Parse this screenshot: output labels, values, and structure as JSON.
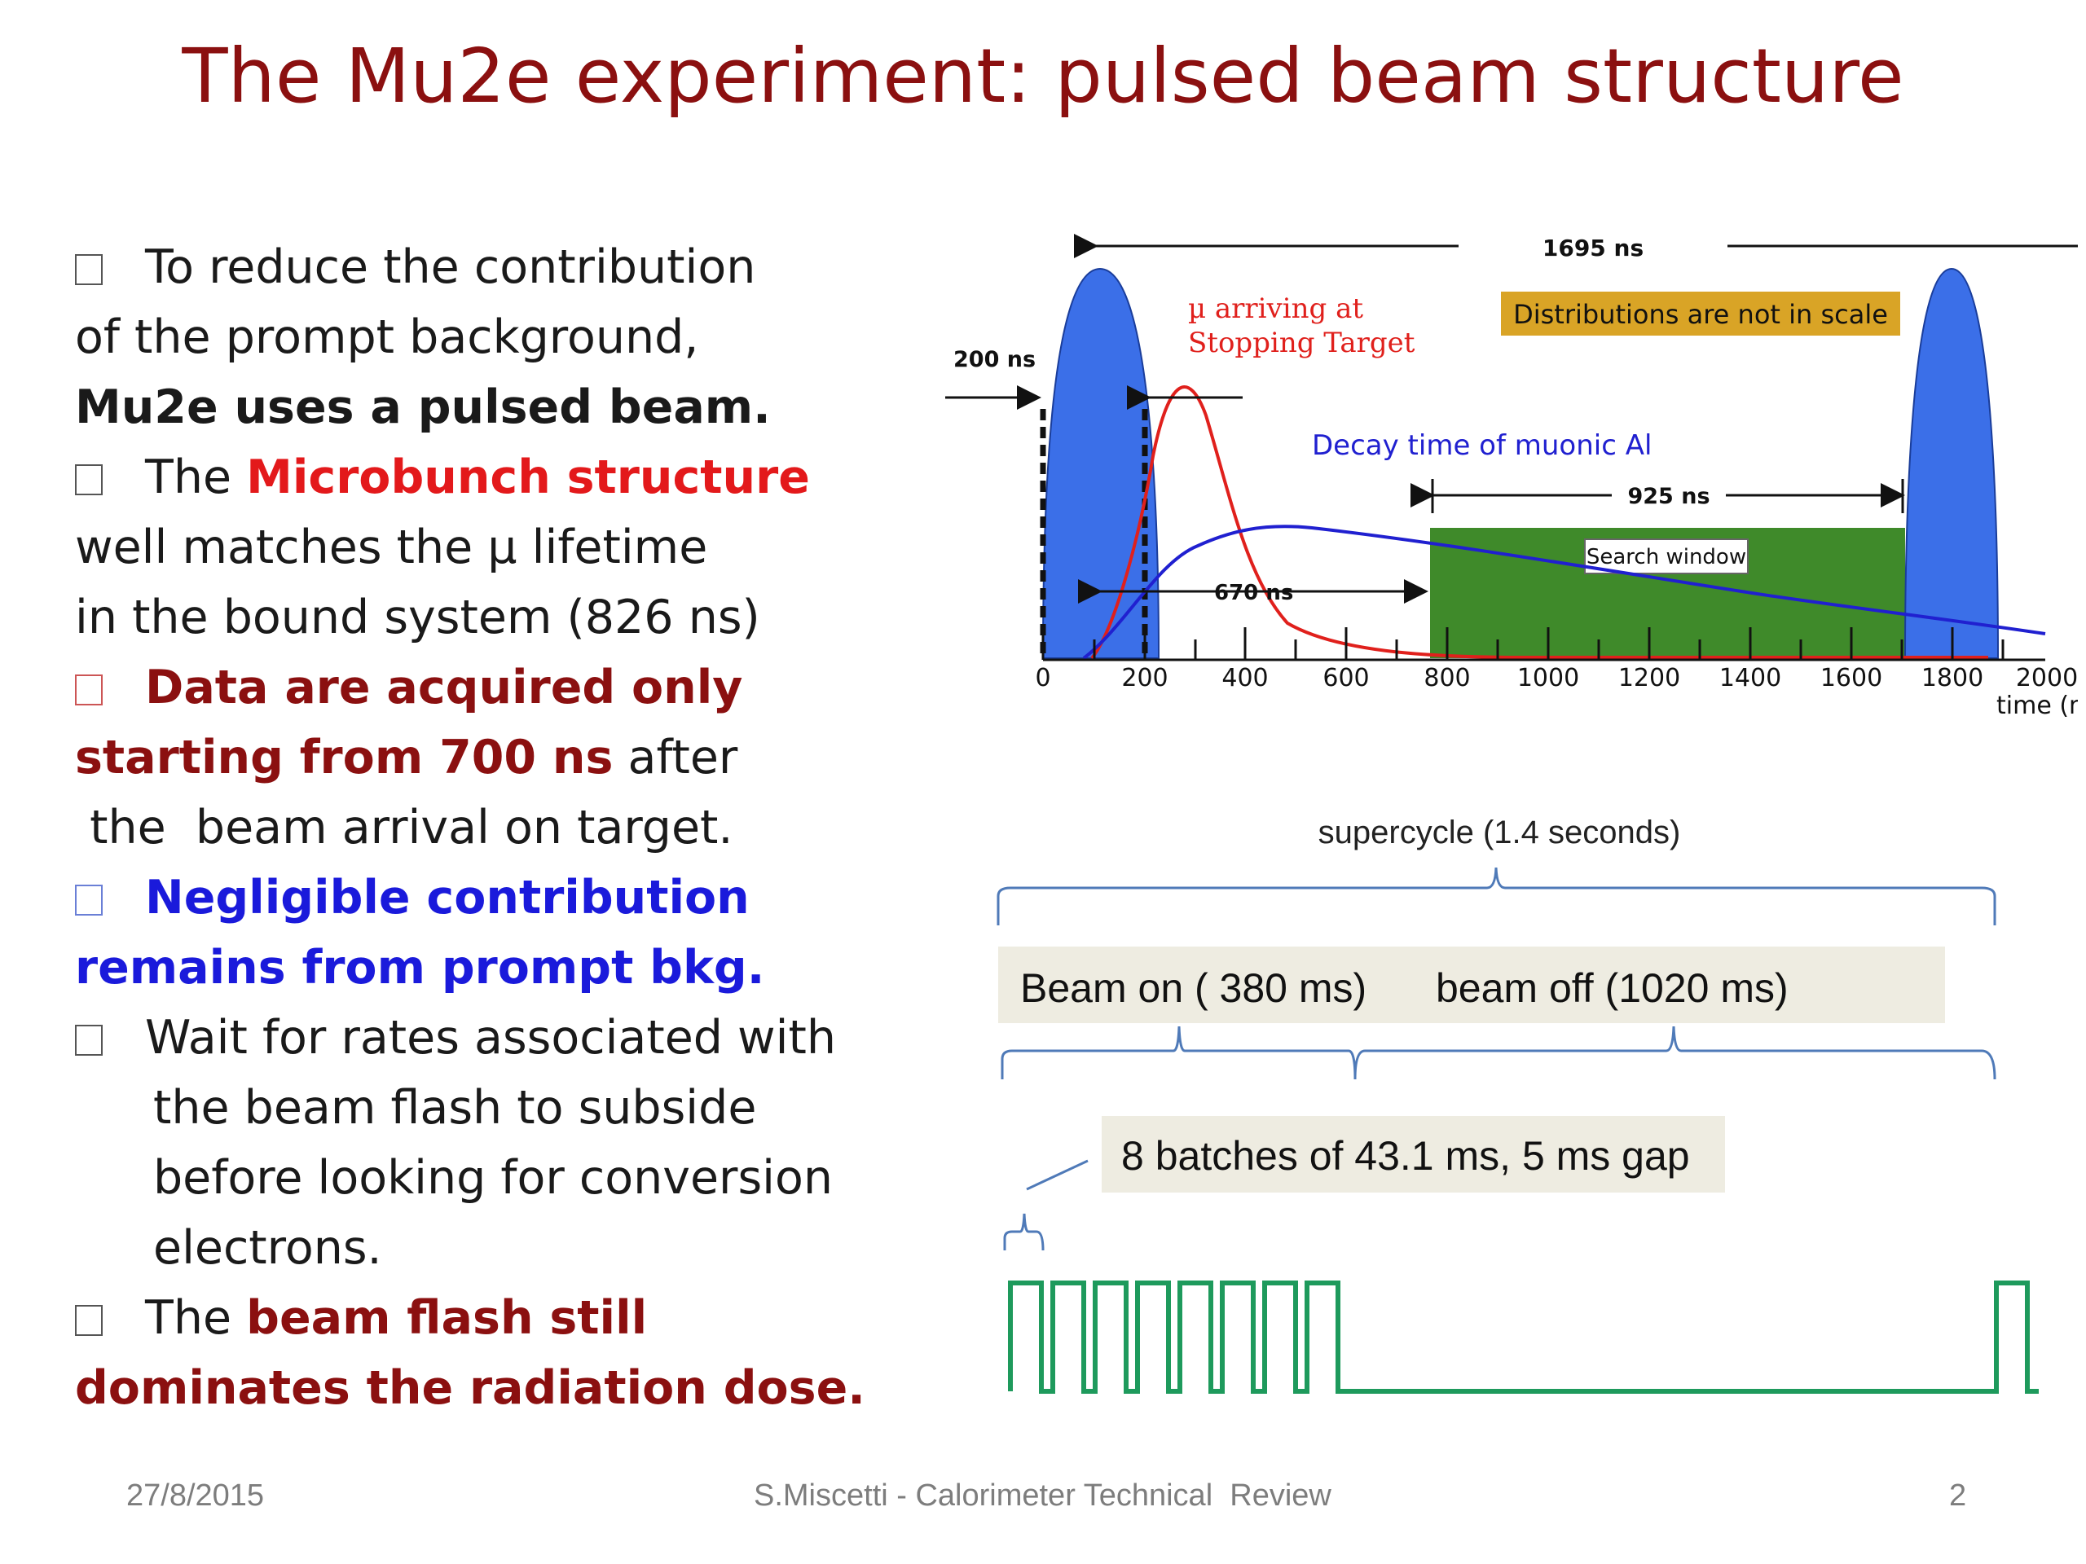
{
  "title": "The Mu2e experiment: pulsed beam structure",
  "bullets": {
    "b1": {
      "l1": "To reduce the contribution",
      "l2": "of the prompt background,",
      "l3": "Mu2e uses a pulsed beam."
    },
    "b2": {
      "l1a": "The ",
      "l1b": "Microbunch structure",
      "l2": "well matches  the µ lifetime",
      "l3": "in the bound system (826 ns)"
    },
    "b3": {
      "l1": "Data are acquired only",
      "l2a": "starting  from 700 ns",
      "l2b": " after",
      "l3": " the  beam arrival on target."
    },
    "b4": {
      "l1": "Negligible contribution",
      "l2": "remains from prompt bkg."
    },
    "b5": {
      "l1": "Wait for rates associated with",
      "l2": "the beam flash to subside",
      "l3": "before looking for conversion",
      "l4": "electrons."
    },
    "b6": {
      "l1a": "The ",
      "l1b": "beam flash still",
      "l2": "dominates the radiation dose."
    }
  },
  "diagram": {
    "span_label": "1695 ns",
    "label_200": "200 ns",
    "mu_arriving_l1": "µ arriving at",
    "mu_arriving_l2": "Stopping Target",
    "not_in_scale": "Distributions are not in scale",
    "decay_time": "Decay time of muonic Al",
    "label_925": "925 ns",
    "search_window": "Search window",
    "label_670": "670 ns",
    "axis_ticks": [
      "0",
      "200",
      "400",
      "600",
      "800",
      "1000",
      "1200",
      "1400",
      "1600",
      "1800",
      "2000"
    ],
    "axis_label": "time (ns)",
    "colors": {
      "pulse": "#3b6fe8",
      "window": "#3f8a2a",
      "arrival": "#e0201c",
      "decay": "#2020d0",
      "note_bg": "#d9a426"
    }
  },
  "supercycle": {
    "label": "supercycle (1.4 seconds)",
    "beam_on": "Beam on ( 380 ms)",
    "beam_off": "beam off (1020 ms)",
    "batches": "8 batches of 43.1 ms, 5 ms gap",
    "colors": {
      "box_bg": "#eeece1",
      "pulse_train": "#1e9a5c"
    }
  },
  "footer": {
    "date": "27/8/2015",
    "center": "S.Miscetti - Calorimeter Technical  Review",
    "page": "2"
  }
}
